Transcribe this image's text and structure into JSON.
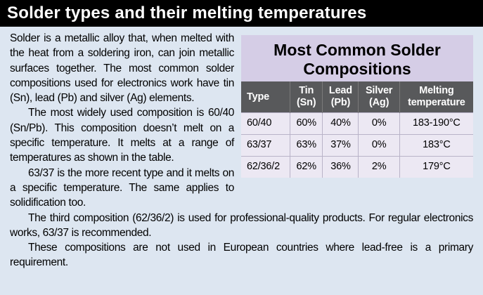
{
  "header": {
    "title": "Solder types and their melting temperatures"
  },
  "body": {
    "paragraphs": [
      "Solder is a metallic alloy that, when melted with the heat from a soldering iron, can join metallic surfaces together. The most common solder compositions used for electronics work have tin (Sn), lead (Pb) and silver (Ag) elements.",
      "The most widely used composition is 60/40 (Sn/Pb). This composition doesn’t melt on a specific temperature. It melts at a range of temperatures as shown in the table.",
      "63/37 is the more recent type and it melts on a specific temperature. The same applies to solidification too.",
      "The third composition (62/36/2) is used for professional-quality products. For regular electronics works, 63/37 is recommended.",
      "These compositions are not used in European countries where lead-free is a primary requirement."
    ]
  },
  "table": {
    "title": "Most Common Solder Compositions",
    "columns": [
      "Type",
      "Tin (Sn)",
      "Lead (Pb)",
      "Silver (Ag)",
      "Melting temperature"
    ],
    "rows": [
      [
        "60/40",
        "60%",
        "40%",
        "0%",
        "183-190°C"
      ],
      [
        "63/37",
        "63%",
        "37%",
        "0%",
        "183°C"
      ],
      [
        "62/36/2",
        "62%",
        "36%",
        "2%",
        "179°C"
      ]
    ]
  }
}
